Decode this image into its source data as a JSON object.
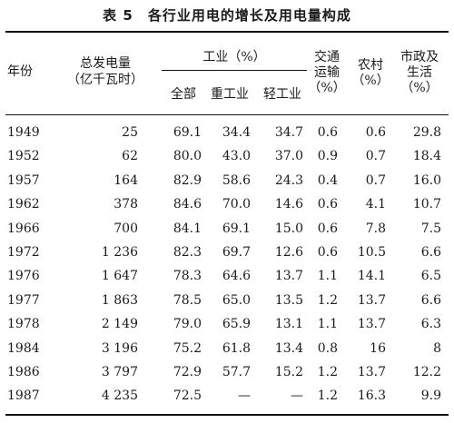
{
  "title": "表 5　各行业用电的增长及用电量构成",
  "headers": {
    "year": "年份",
    "total_1": "总发电量",
    "total_2": "（亿千瓦时）",
    "industry": "工业（%）",
    "industry_all": "全部",
    "heavy": "重工业",
    "light": "轻工业",
    "transport_1": "交通",
    "transport_2": "运输",
    "transport_3": "（%）",
    "rural_1": "农村",
    "rural_2": "（%）",
    "civic_1": "市政及",
    "civic_2": "生活",
    "civic_3": "（%）"
  },
  "rows": [
    [
      "1949",
      "25",
      "69.1",
      "34.4",
      "34.7",
      "0.6",
      "0.6",
      "29.8"
    ],
    [
      "1952",
      "62",
      "80.0",
      "43.0",
      "37.0",
      "0.9",
      "0.7",
      "18.4"
    ],
    [
      "1957",
      "164",
      "82.9",
      "58.6",
      "24.3",
      "0.4",
      "0.7",
      "16.0"
    ],
    [
      "1962",
      "378",
      "84.6",
      "70.0",
      "14.6",
      "0.6",
      "4.1",
      "10.7"
    ],
    [
      "1966",
      "700",
      "84.1",
      "69.1",
      "15.0",
      "0.6",
      "7.8",
      "7.5"
    ],
    [
      "1972",
      "1 236",
      "82.3",
      "69.7",
      "12.6",
      "0.6",
      "10.5",
      "6.6"
    ],
    [
      "1976",
      "1 647",
      "78.3",
      "64.6",
      "13.7",
      "1.1",
      "14.1",
      "6.5"
    ],
    [
      "1977",
      "1 863",
      "78.5",
      "65.0",
      "13.5",
      "1.2",
      "13.7",
      "6.6"
    ],
    [
      "1978",
      "2 149",
      "79.0",
      "65.9",
      "13.1",
      "1.1",
      "13.7",
      "6.3"
    ],
    [
      "1984",
      "3 196",
      "75.2",
      "61.8",
      "13.4",
      "0.8",
      "16",
      "8"
    ],
    [
      "1986",
      "3 797",
      "72.9",
      "57.7",
      "15.2",
      "1.2",
      "13.7",
      "12.2"
    ],
    [
      "1987",
      "4 235",
      "72.5",
      "—",
      "—",
      "1.2",
      "16.3",
      "9.9"
    ]
  ]
}
